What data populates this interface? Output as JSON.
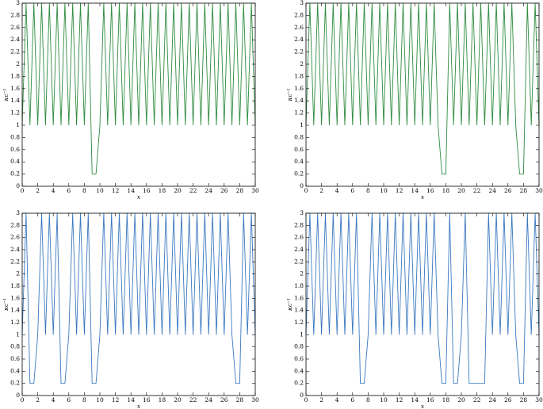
{
  "chart_data": [
    {
      "type": "line",
      "xlabel": "x",
      "ylabel": "κc⁻¹",
      "x": [
        0,
        0.5,
        1,
        1.5,
        2,
        2.5,
        3,
        3.5,
        4,
        4.5,
        5,
        5.5,
        6,
        6.5,
        7,
        7.5,
        8,
        8.5,
        9,
        9.5,
        10,
        10.5,
        11,
        11.5,
        12,
        12.5,
        13,
        13.5,
        14,
        14.5,
        15,
        15.5,
        16,
        16.5,
        17,
        17.5,
        18,
        18.5,
        19,
        19.5,
        20,
        20.5,
        21,
        21.5,
        22,
        22.5,
        23,
        23.5,
        24,
        24.5,
        25,
        25.5,
        26,
        26.5,
        27,
        27.5,
        28,
        28.5,
        29,
        29.5,
        30
      ],
      "series": [
        {
          "color": "#2e8b3f",
          "values": [
            1,
            3,
            1,
            3,
            1,
            3,
            1,
            3,
            1,
            3,
            1,
            3,
            1,
            3,
            1,
            3,
            1,
            3,
            0.2,
            0.2,
            1,
            3,
            1,
            3,
            1,
            3,
            1,
            3,
            1,
            3,
            1,
            3,
            1,
            3,
            1,
            3,
            1,
            3,
            1,
            3,
            1,
            3,
            1,
            3,
            1,
            3,
            1,
            3,
            1,
            3,
            1,
            3,
            1,
            3,
            1,
            3,
            1,
            3,
            1,
            3,
            1
          ]
        }
      ],
      "xlim": [
        0,
        30
      ],
      "xticks": [
        0,
        2,
        4,
        6,
        8,
        10,
        12,
        14,
        16,
        18,
        20,
        22,
        24,
        26,
        28,
        30
      ],
      "ylim": [
        0,
        3
      ],
      "yticks": [
        0,
        0.2,
        0.4,
        0.6,
        0.8,
        1,
        1.2,
        1.4,
        1.6,
        1.8,
        2,
        2.2,
        2.4,
        2.6,
        2.8,
        3
      ]
    },
    {
      "type": "line",
      "xlabel": "x",
      "ylabel": "κc⁻¹",
      "x": [
        0,
        0.5,
        1,
        1.5,
        2,
        2.5,
        3,
        3.5,
        4,
        4.5,
        5,
        5.5,
        6,
        6.5,
        7,
        7.5,
        8,
        8.5,
        9,
        9.5,
        10,
        10.5,
        11,
        11.5,
        12,
        12.5,
        13,
        13.5,
        14,
        14.5,
        15,
        15.5,
        16,
        16.5,
        17,
        17.5,
        18,
        18.5,
        19,
        19.5,
        20,
        20.5,
        21,
        21.5,
        22,
        22.5,
        23,
        23.5,
        24,
        24.5,
        25,
        25.5,
        26,
        26.5,
        27,
        27.5,
        28,
        28.5,
        29,
        29.5,
        30
      ],
      "series": [
        {
          "color": "#2e8b3f",
          "values": [
            1,
            3,
            1,
            3,
            1,
            3,
            1,
            3,
            1,
            3,
            1,
            3,
            1,
            3,
            1,
            3,
            1,
            3,
            1,
            3,
            1,
            3,
            1,
            3,
            1,
            3,
            1,
            3,
            1,
            3,
            1,
            3,
            1,
            3,
            1,
            0.2,
            0.2,
            3,
            1,
            3,
            1,
            3,
            1,
            3,
            1,
            3,
            1,
            3,
            1,
            3,
            1,
            3,
            1,
            3,
            1,
            0.2,
            0.2,
            3,
            1,
            3,
            1
          ]
        }
      ],
      "xlim": [
        0,
        30
      ],
      "xticks": [
        0,
        2,
        4,
        6,
        8,
        10,
        12,
        14,
        16,
        18,
        20,
        22,
        24,
        26,
        28,
        30
      ],
      "ylim": [
        0,
        3
      ],
      "yticks": [
        0,
        0.2,
        0.4,
        0.6,
        0.8,
        1,
        1.2,
        1.4,
        1.6,
        1.8,
        2,
        2.2,
        2.4,
        2.6,
        2.8,
        3
      ]
    },
    {
      "type": "line",
      "xlabel": "x",
      "ylabel": "κc⁻¹",
      "x": [
        0,
        0.5,
        1,
        1.5,
        2,
        2.5,
        3,
        3.5,
        4,
        4.5,
        5,
        5.5,
        6,
        6.5,
        7,
        7.5,
        8,
        8.5,
        9,
        9.5,
        10,
        10.5,
        11,
        11.5,
        12,
        12.5,
        13,
        13.5,
        14,
        14.5,
        15,
        15.5,
        16,
        16.5,
        17,
        17.5,
        18,
        18.5,
        19,
        19.5,
        20,
        20.5,
        21,
        21.5,
        22,
        22.5,
        23,
        23.5,
        24,
        24.5,
        25,
        25.5,
        26,
        26.5,
        27,
        27.5,
        28,
        28.5,
        29,
        29.5,
        30
      ],
      "series": [
        {
          "color": "#3a78c0",
          "values": [
            1,
            3,
            0.2,
            0.2,
            1,
            3,
            1,
            3,
            1,
            3,
            0.2,
            0.2,
            1,
            3,
            1,
            3,
            1,
            3,
            0.2,
            0.2,
            1,
            3,
            1,
            3,
            1,
            3,
            1,
            3,
            1,
            3,
            1,
            3,
            1,
            3,
            1,
            3,
            1,
            3,
            1,
            3,
            1,
            3,
            1,
            3,
            1,
            3,
            1,
            3,
            1,
            3,
            1,
            3,
            1,
            3,
            1,
            0.2,
            0.2,
            3,
            1,
            3,
            1
          ]
        }
      ],
      "xlim": [
        0,
        30
      ],
      "xticks": [
        0,
        2,
        4,
        6,
        8,
        10,
        12,
        14,
        16,
        18,
        20,
        22,
        24,
        26,
        28,
        30
      ],
      "ylim": [
        0,
        3
      ],
      "yticks": [
        0,
        0.2,
        0.4,
        0.6,
        0.8,
        1,
        1.2,
        1.4,
        1.6,
        1.8,
        2,
        2.2,
        2.4,
        2.6,
        2.8,
        3
      ]
    },
    {
      "type": "line",
      "xlabel": "x",
      "ylabel": "κc⁻¹",
      "x": [
        0,
        0.5,
        1,
        1.5,
        2,
        2.5,
        3,
        3.5,
        4,
        4.5,
        5,
        5.5,
        6,
        6.5,
        7,
        7.5,
        8,
        8.5,
        9,
        9.5,
        10,
        10.5,
        11,
        11.5,
        12,
        12.5,
        13,
        13.5,
        14,
        14.5,
        15,
        15.5,
        16,
        16.5,
        17,
        17.5,
        18,
        18.5,
        19,
        19.5,
        20,
        20.5,
        21,
        21.5,
        22,
        22.5,
        23,
        23.5,
        24,
        24.5,
        25,
        25.5,
        26,
        26.5,
        27,
        27.5,
        28,
        28.5,
        29,
        29.5,
        30
      ],
      "series": [
        {
          "color": "#3a78c0",
          "values": [
            1,
            3,
            1,
            3,
            1,
            3,
            1,
            3,
            1,
            3,
            1,
            3,
            1,
            3,
            0.2,
            0.2,
            1,
            3,
            1,
            3,
            1,
            3,
            1,
            3,
            1,
            3,
            1,
            3,
            1,
            3,
            1,
            3,
            1,
            3,
            1,
            0.2,
            0.2,
            3,
            0.2,
            0.2,
            1,
            3,
            0.2,
            0.2,
            0.2,
            0.2,
            0.2,
            3,
            1,
            3,
            1,
            3,
            1,
            3,
            1,
            0.2,
            0.2,
            3,
            1,
            3,
            1
          ]
        }
      ],
      "xlim": [
        0,
        30
      ],
      "xticks": [
        0,
        2,
        4,
        6,
        8,
        10,
        12,
        14,
        16,
        18,
        20,
        22,
        24,
        26,
        28,
        30
      ],
      "ylim": [
        0,
        3
      ],
      "yticks": [
        0,
        0.2,
        0.4,
        0.6,
        0.8,
        1,
        1.2,
        1.4,
        1.6,
        1.8,
        2,
        2.2,
        2.4,
        2.6,
        2.8,
        3
      ]
    }
  ]
}
